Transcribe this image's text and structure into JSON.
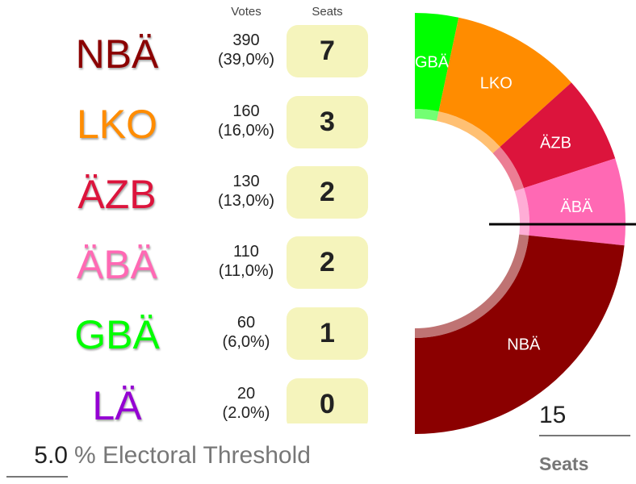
{
  "table": {
    "votes_header": "Votes",
    "seats_header": "Seats",
    "rows": [
      {
        "party": "NBÄ",
        "color": "#8b0000",
        "votes": "390",
        "percent": "(39,0%)",
        "seats": "7"
      },
      {
        "party": "LKO",
        "color": "#ff8c00",
        "votes": "160",
        "percent": "(16,0%)",
        "seats": "3"
      },
      {
        "party": "ÄZB",
        "color": "#dc143c",
        "votes": "130",
        "percent": "(13,0%)",
        "seats": "2"
      },
      {
        "party": "ÄBÄ",
        "color": "#ff69b4",
        "votes": "110",
        "percent": "(11,0%)",
        "seats": "2"
      },
      {
        "party": "GBÄ",
        "color": "#00ff00",
        "votes": "60",
        "percent": "(6,0%)",
        "seats": "1"
      },
      {
        "party": "LÄ",
        "color": "#9400d3",
        "votes": "20",
        "percent": "(2.0%)",
        "seats": "0"
      }
    ]
  },
  "threshold": {
    "value": "5.0",
    "label": "% Electoral Threshold"
  },
  "total_seats": {
    "value": "15",
    "label": "Seats"
  },
  "chart_data": {
    "type": "pie",
    "subtype": "half-donut (parliament seat distribution)",
    "title": "",
    "total": 15,
    "categories": [
      "GBÄ",
      "LKO",
      "ÄZB",
      "ÄBÄ",
      "NBÄ"
    ],
    "values": [
      1,
      3,
      2,
      2,
      7
    ],
    "colors": [
      "#00ff00",
      "#ff8c00",
      "#dc143c",
      "#ff69b4",
      "#8b0000"
    ],
    "slice_labels": [
      "GBÄ",
      "LKO",
      "ÄZB",
      "ÄBÄ",
      "NBÄ"
    ],
    "majority_line": "horizontal line at 50% (midpoint)",
    "votes": {
      "NBÄ": 390,
      "LKO": 160,
      "ÄZB": 130,
      "ÄBÄ": 110,
      "GBÄ": 60,
      "LÄ": 20
    },
    "vote_percent": {
      "NBÄ": 39.0,
      "LKO": 16.0,
      "ÄZB": 13.0,
      "ÄBÄ": 11.0,
      "GBÄ": 6.0,
      "LÄ": 2.0
    }
  }
}
